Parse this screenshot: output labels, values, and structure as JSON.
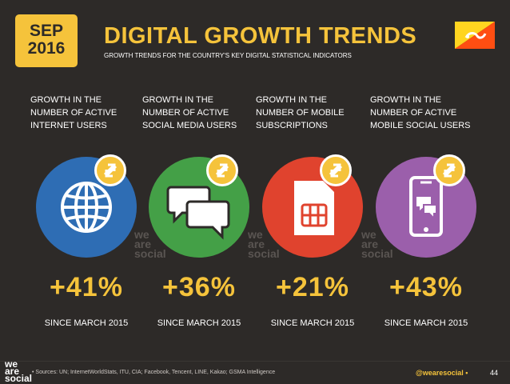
{
  "header": {
    "month": "SEP",
    "year": "2016",
    "title": "DIGITAL GROWTH TRENDS",
    "subtitle": "GROWTH TRENDS FOR THE COUNTRY'S KEY DIGITAL STATISTICAL INDICATORS"
  },
  "colors": {
    "accent": "#f5c33b",
    "background": "#2d2a28",
    "internet": "#2e6db4",
    "social": "#44a047",
    "mobile": "#e0432e",
    "mobile_social": "#9b5fab"
  },
  "cards": [
    {
      "label_lines": [
        "GROWTH IN THE",
        "NUMBER OF ACTIVE",
        "INTERNET USERS"
      ],
      "value": "+41%",
      "since": "SINCE MARCH 2015",
      "icon": "globe-icon"
    },
    {
      "label_lines": [
        "GROWTH IN THE",
        "NUMBER OF ACTIVE",
        "SOCIAL MEDIA USERS"
      ],
      "value": "+36%",
      "since": "SINCE MARCH 2015",
      "icon": "chat-bubbles-icon"
    },
    {
      "label_lines": [
        "GROWTH IN THE",
        "NUMBER OF MOBILE",
        "SUBSCRIPTIONS"
      ],
      "value": "+21%",
      "since": "SINCE MARCH 2015",
      "icon": "sim-card-icon"
    },
    {
      "label_lines": [
        "GROWTH IN THE",
        "NUMBER OF ACTIVE",
        "MOBILE SOCIAL USERS"
      ],
      "value": "+43%",
      "since": "SINCE MARCH 2015",
      "icon": "mobile-chat-icon"
    }
  ],
  "watermark": [
    "we",
    "are",
    "social"
  ],
  "footer": {
    "logo_lines": [
      "we",
      "are",
      "social"
    ],
    "sources": "• Sources: UN; InternetWorldStats, ITU, CIA; Facebook, Tencent, LINE, Kakao; GSMA Intelligence",
    "handle": "@wearesocial •",
    "page": "44"
  }
}
